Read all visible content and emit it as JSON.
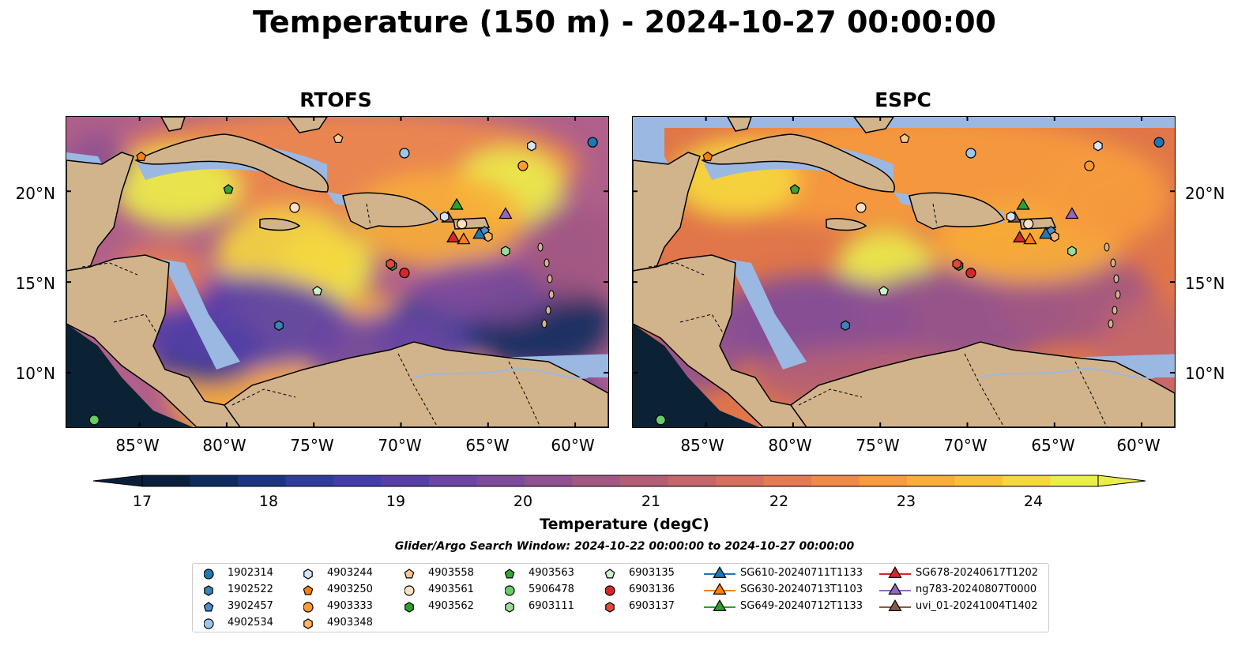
{
  "title": "Temperature (150 m) - 2024-10-27 00:00:00",
  "panels": [
    {
      "name": "RTOFS"
    },
    {
      "name": "ESPC"
    }
  ],
  "axes": {
    "lat_labels": [
      "20°N",
      "15°N",
      "10°N"
    ],
    "lon_labels": [
      "85°W",
      "80°W",
      "75°W",
      "70°W",
      "65°W",
      "60°W"
    ]
  },
  "colorbar": {
    "label": "Temperature (degC)",
    "ticks": [
      "17",
      "18",
      "19",
      "20",
      "21",
      "22",
      "23",
      "24"
    ],
    "min": 16.5,
    "max": 24.5,
    "colors": [
      "#0a1f3a",
      "#0f2c5e",
      "#1b3580",
      "#2e3c9a",
      "#433ea6",
      "#583fa8",
      "#6c45a3",
      "#7d4b9b",
      "#8f5190",
      "#a15883",
      "#b25f76",
      "#c4666a",
      "#d56f60",
      "#e47b55",
      "#ef8a4a",
      "#f69b3e",
      "#f8ae38",
      "#f8c238",
      "#f5d73f",
      "#eaee4b"
    ]
  },
  "search_window": "Glider/Argo Search Window: 2024-10-22 00:00:00 to 2024-10-27 00:00:00",
  "colors": {
    "land": "#d2b48c",
    "shelf": "#9bb8e3",
    "ocean_mid": "#e8773f",
    "abyss": "#0a2233"
  },
  "legend": [
    {
      "label": "1902314",
      "marker": "circle",
      "color": "#1f77b4"
    },
    {
      "label": "1902522",
      "marker": "hexagon",
      "color": "#3b83b8"
    },
    {
      "label": "3902457",
      "marker": "pentagon",
      "color": "#4a90cc"
    },
    {
      "label": "4902534",
      "marker": "circle",
      "color": "#9cc7ec"
    },
    {
      "label": "4903244",
      "marker": "hexagon",
      "color": "#d3e5f7"
    },
    {
      "label": "4903250",
      "marker": "pentagon",
      "color": "#ff7f0e"
    },
    {
      "label": "4903333",
      "marker": "circle",
      "color": "#ff9933"
    },
    {
      "label": "4903348",
      "marker": "hexagon",
      "color": "#ffb366"
    },
    {
      "label": "4903558",
      "marker": "pentagon",
      "color": "#ffc78f"
    },
    {
      "label": "4903561",
      "marker": "circle",
      "color": "#ffe0c2"
    },
    {
      "label": "4903562",
      "marker": "hexagon",
      "color": "#2ca02c"
    },
    {
      "label": "4903563",
      "marker": "pentagon",
      "color": "#33a633"
    },
    {
      "label": "5906478",
      "marker": "circle",
      "color": "#66cc66"
    },
    {
      "label": "6903111",
      "marker": "hexagon",
      "color": "#99dd99"
    },
    {
      "label": "6903135",
      "marker": "pentagon",
      "color": "#ccf2cc"
    },
    {
      "label": "6903136",
      "marker": "circle",
      "color": "#d62728"
    },
    {
      "label": "6903137",
      "marker": "hexagon",
      "color": "#e04a3a"
    },
    {
      "label": "SG610-20240711T1133",
      "marker": "triangle",
      "color": "#1f77b4"
    },
    {
      "label": "SG630-20240713T1103",
      "marker": "triangle",
      "color": "#ff7f0e"
    },
    {
      "label": "SG649-20240712T1133",
      "marker": "triangle",
      "color": "#2ca02c"
    },
    {
      "label": "SG678-20240617T1202",
      "marker": "triangle",
      "color": "#d62728"
    },
    {
      "label": "ng783-20240807T0000",
      "marker": "triangle",
      "color": "#9467bd"
    },
    {
      "label": "uvi_01-20241004T1402",
      "marker": "triangle",
      "color": "#8c564b"
    }
  ]
}
